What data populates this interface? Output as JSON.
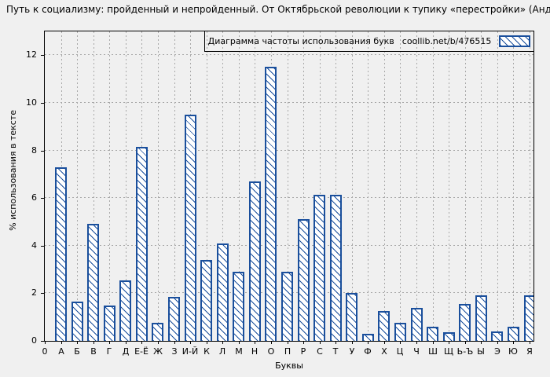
{
  "page": {
    "title": "Путь к социализму: пройденный и непройденный. От Октябрьской революции к тупику «перестройки» (Андрей Колганов)"
  },
  "legend": {
    "label": "Диаграмма частоты использования букв",
    "source": "coollib.net/b/476515"
  },
  "colors": {
    "bar_border": "#1a4f9c",
    "bar_fill": "#ffffff",
    "background": "#f0f0f0",
    "gridline": "#a8a8a8",
    "axis": "#000000"
  },
  "chart_data": {
    "type": "bar",
    "title": "Диаграмма частоты использования букв coollib.net/b/476515",
    "categories": [
      "А",
      "Б",
      "В",
      "Г",
      "Д",
      "Е-Ё",
      "Ж",
      "З",
      "И-Й",
      "К",
      "Л",
      "М",
      "Н",
      "О",
      "П",
      "Р",
      "С",
      "Т",
      "У",
      "Ф",
      "Х",
      "Ц",
      "Ч",
      "Ш",
      "Щ",
      "Ь-Ъ",
      "Ы",
      "Э",
      "Ю",
      "Я"
    ],
    "values": [
      7.3,
      1.65,
      4.9,
      1.5,
      2.55,
      8.15,
      0.75,
      1.85,
      9.5,
      3.4,
      4.1,
      2.9,
      6.7,
      11.5,
      2.9,
      5.1,
      6.15,
      6.15,
      2.0,
      0.3,
      1.25,
      0.75,
      1.4,
      0.6,
      0.35,
      1.55,
      1.9,
      0.4,
      0.6,
      1.9
    ],
    "xlabel": "Буквы",
    "ylabel": "% использования в тексте",
    "x_origin_label": "0",
    "yticks": [
      0,
      2,
      4,
      6,
      8,
      10,
      12
    ],
    "ylim": [
      0,
      13
    ],
    "grid": true,
    "legend_position": "top-right",
    "hatch": "diagonal-backslash"
  }
}
